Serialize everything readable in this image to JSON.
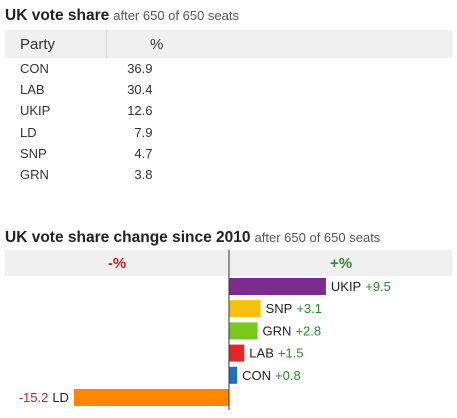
{
  "vote_share": {
    "title": "UK vote share",
    "subtitle": "after 650 of 650 seats",
    "headers": {
      "party": "Party",
      "pct": "%"
    },
    "rows": [
      {
        "party": "CON",
        "pct": "36.9"
      },
      {
        "party": "LAB",
        "pct": "30.4"
      },
      {
        "party": "UKIP",
        "pct": "12.6"
      },
      {
        "party": "LD",
        "pct": "7.9"
      },
      {
        "party": "SNP",
        "pct": "4.7"
      },
      {
        "party": "GRN",
        "pct": "3.8"
      }
    ]
  },
  "change": {
    "title": "UK vote share change since 2010",
    "subtitle": "after 650 of 650 seats",
    "neg_header": "-%",
    "pos_header": "+%"
  },
  "colors": {
    "positive_text": "#2e8b2e",
    "negative_text": "#cc2222",
    "header_bg": "#f0f0f0"
  },
  "chart_data": {
    "type": "bar",
    "orientation": "horizontal",
    "categories": [
      "UKIP",
      "SNP",
      "GRN",
      "LAB",
      "CON",
      "LD"
    ],
    "values": [
      9.5,
      3.1,
      2.8,
      1.5,
      0.8,
      -15.2
    ],
    "labels": [
      "+9.5",
      "+3.1",
      "+2.8",
      "+1.5",
      "+0.8",
      "-15.2"
    ],
    "colors": [
      "#7b2c8e",
      "#f4c20d",
      "#77c91b",
      "#e22526",
      "#1f6fc1",
      "#ff8800"
    ],
    "title": "UK vote share change since 2010",
    "xlim": [
      -16.5,
      16.5
    ]
  }
}
